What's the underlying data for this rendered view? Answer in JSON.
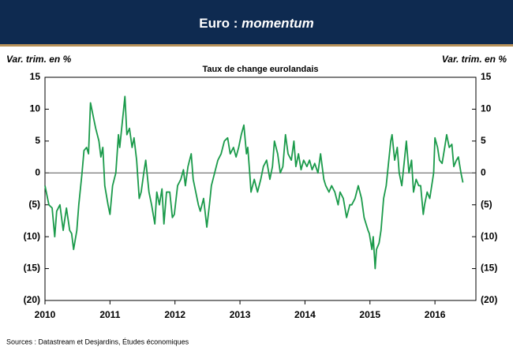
{
  "chart_data": {
    "type": "line",
    "title": {
      "text": "Euro :",
      "emphasis": "momentum"
    },
    "subtitle": "Taux de change eurolandais",
    "y_label": "Var. trim. en %",
    "y2_label": "Var. trim. en %",
    "source": "Sources : Datastream et Desjardins, Études économiques",
    "color": "#1a9a4a",
    "zero_line": 0,
    "x": [
      2010.0,
      2010.06,
      2010.11,
      2010.15,
      2010.18,
      2010.23,
      2010.28,
      2010.33,
      2010.38,
      2010.41,
      2010.44,
      2010.49,
      2010.52,
      2010.57,
      2010.6,
      2010.64,
      2010.67,
      2010.7,
      2010.74,
      2010.78,
      2010.83,
      2010.86,
      2010.89,
      2010.92,
      2010.97,
      2011.0,
      2011.04,
      2011.09,
      2011.13,
      2011.15,
      2011.19,
      2011.23,
      2011.26,
      2011.3,
      2011.34,
      2011.37,
      2011.41,
      2011.45,
      2011.48,
      2011.52,
      2011.55,
      2011.6,
      2011.64,
      2011.69,
      2011.72,
      2011.76,
      2011.8,
      2011.83,
      2011.87,
      2011.92,
      2011.96,
      2011.99,
      2012.04,
      2012.09,
      2012.13,
      2012.16,
      2012.2,
      2012.25,
      2012.28,
      2012.32,
      2012.36,
      2012.39,
      2012.44,
      2012.49,
      2012.53,
      2012.56,
      2012.61,
      2012.66,
      2012.71,
      2012.76,
      2012.81,
      2012.85,
      2012.9,
      2012.94,
      2012.98,
      2013.0,
      2013.02,
      2013.06,
      2013.1,
      2013.12,
      2013.15,
      2013.17,
      2013.22,
      2013.27,
      2013.32,
      2013.36,
      2013.41,
      2013.46,
      2013.5,
      2013.53,
      2013.58,
      2013.62,
      2013.66,
      2013.7,
      2013.74,
      2013.79,
      2013.83,
      2013.86,
      2013.9,
      2013.94,
      2013.98,
      2014.03,
      2014.07,
      2014.11,
      2014.15,
      2014.2,
      2014.24,
      2014.29,
      2014.32,
      2014.37,
      2014.41,
      2014.46,
      2014.51,
      2014.54,
      2014.59,
      2014.64,
      2014.69,
      2014.72,
      2014.77,
      2014.82,
      2014.87,
      2014.91,
      2014.94,
      2014.97,
      2014.99,
      2015.03,
      2015.05,
      2015.08,
      2015.1,
      2015.14,
      2015.17,
      2015.21,
      2015.25,
      2015.28,
      2015.32,
      2015.34,
      2015.38,
      2015.42,
      2015.45,
      2015.49,
      2015.53,
      2015.56,
      2015.6,
      2015.64,
      2015.67,
      2015.71,
      2015.75,
      2015.78,
      2015.82,
      2015.84,
      2015.88,
      2015.92,
      2015.95,
      2015.98,
      2016.0,
      2016.04,
      2016.07,
      2016.11,
      2016.15,
      2016.18,
      2016.22,
      2016.26,
      2016.29,
      2016.33,
      2016.36,
      2016.4,
      2016.43
    ],
    "values": [
      -2,
      -5,
      -5.5,
      -10,
      -6,
      -5,
      -9,
      -5.5,
      -9,
      -9.5,
      -12,
      -9,
      -5,
      0,
      3.5,
      4,
      3,
      11,
      9,
      7,
      5,
      2.5,
      4,
      -2,
      -5,
      -6.5,
      -2,
      0,
      6,
      4,
      8,
      12,
      6,
      7,
      4,
      5.5,
      2,
      -4,
      -3,
      0,
      2,
      -3,
      -5,
      -8,
      -3,
      -5,
      -2.5,
      -8,
      -3,
      -3,
      -7,
      -6.5,
      -2,
      -1,
      0.5,
      -2,
      1,
      3,
      -1,
      -3,
      -5,
      -6,
      -4,
      -8.5,
      -5,
      -2,
      0,
      2,
      3,
      5,
      5.5,
      3,
      4,
      2.5,
      4,
      5,
      6,
      7.5,
      3,
      4,
      0,
      -3,
      -1,
      -3,
      -1,
      1,
      2,
      -1,
      1,
      5,
      3,
      0,
      1,
      6,
      3,
      2,
      5,
      1,
      3,
      0.5,
      2,
      1,
      2,
      0.5,
      1.5,
      0,
      3,
      -1,
      -2,
      -3,
      -2,
      -3,
      -5,
      -3,
      -4,
      -7,
      -5,
      -5,
      -4,
      -2,
      -4,
      -7,
      -8,
      -9,
      -9.5,
      -12,
      -10,
      -15,
      -12,
      -11,
      -9,
      -4,
      -2,
      1,
      5,
      6,
      2,
      4,
      0,
      -2,
      2,
      5,
      0,
      2,
      -3,
      -1,
      -2,
      -2,
      -6.5,
      -5,
      -3,
      -4,
      -2,
      0,
      5.5,
      4,
      2,
      1.5,
      4,
      6,
      4,
      4.5,
      1,
      2,
      2.5,
      0,
      -1.5
    ],
    "xlim": [
      2010,
      2016.63
    ],
    "xticks": [
      2010,
      2011,
      2012,
      2013,
      2014,
      2015,
      2016
    ],
    "ylim": [
      -20,
      15
    ],
    "yticks": [
      15,
      10,
      5,
      0,
      {
        "value": -5,
        "label": "(5)"
      },
      {
        "value": -10,
        "label": "(10)"
      },
      {
        "value": -15,
        "label": "(15)"
      },
      {
        "value": -20,
        "label": "(20)"
      }
    ],
    "y2lim": [
      -20,
      15
    ],
    "y2ticks": [
      15,
      10,
      5,
      0,
      {
        "value": -5,
        "label": "(5)"
      },
      {
        "value": -10,
        "label": "(10)"
      },
      {
        "value": -15,
        "label": "(15)"
      },
      {
        "value": -20,
        "label": "(20)"
      }
    ]
  }
}
